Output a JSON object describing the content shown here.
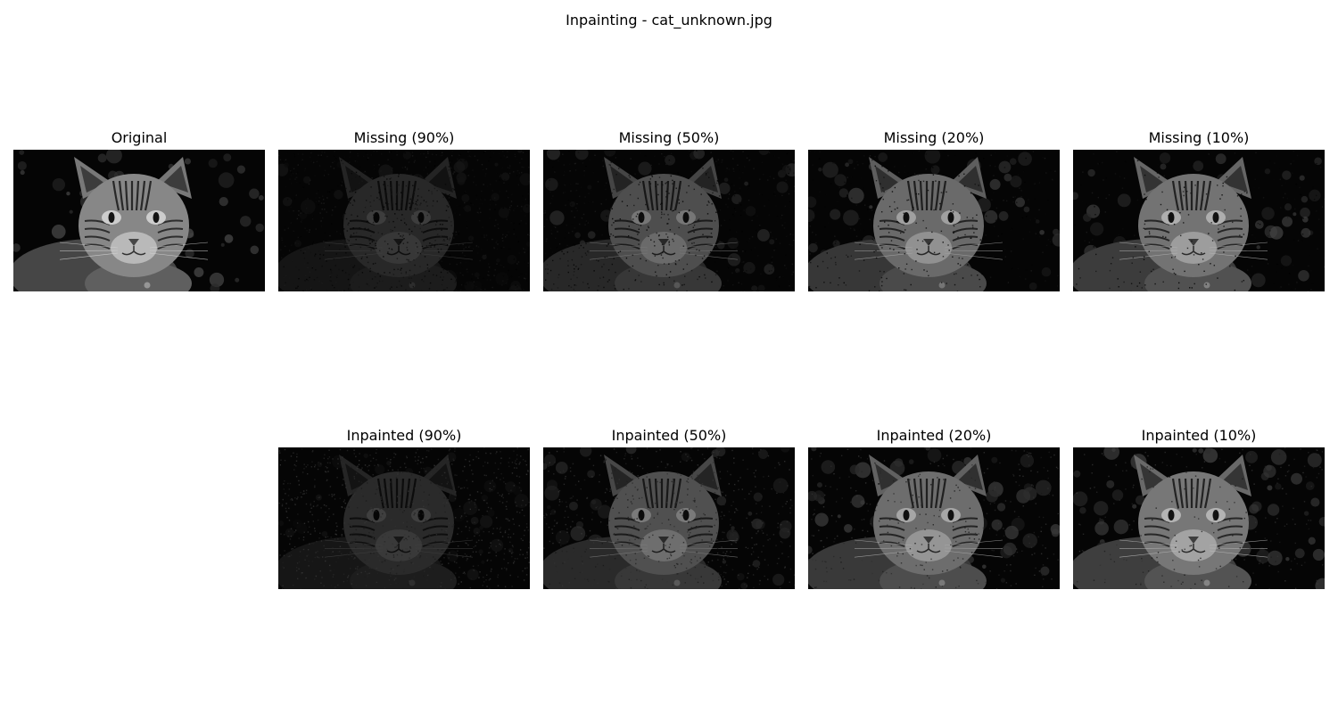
{
  "figure": {
    "title": "Inpainting - cat_unknown.jpg"
  },
  "rows": [
    {
      "row": "top",
      "panels": [
        {
          "id": "original",
          "title": "Original",
          "missing_fraction": 0.0,
          "variant": "original"
        },
        {
          "id": "missing-90",
          "title": "Missing (90%)",
          "missing_fraction": 0.9,
          "variant": "missing"
        },
        {
          "id": "missing-50",
          "title": "Missing (50%)",
          "missing_fraction": 0.5,
          "variant": "missing"
        },
        {
          "id": "missing-20",
          "title": "Missing (20%)",
          "missing_fraction": 0.2,
          "variant": "missing"
        },
        {
          "id": "missing-10",
          "title": "Missing (10%)",
          "missing_fraction": 0.1,
          "variant": "missing"
        }
      ]
    },
    {
      "row": "bottom",
      "panels": [
        {
          "id": "inpainted-90",
          "title": "Inpainted (90%)",
          "missing_fraction": 0.9,
          "variant": "inpainted"
        },
        {
          "id": "inpainted-50",
          "title": "Inpainted (50%)",
          "missing_fraction": 0.5,
          "variant": "inpainted"
        },
        {
          "id": "inpainted-20",
          "title": "Inpainted (20%)",
          "missing_fraction": 0.2,
          "variant": "inpainted"
        },
        {
          "id": "inpainted-10",
          "title": "Inpainted (10%)",
          "missing_fraction": 0.1,
          "variant": "inpainted"
        }
      ]
    }
  ],
  "colors": {
    "background": "#ffffff",
    "image_background": "#050505",
    "image_tone": "grayscale"
  }
}
